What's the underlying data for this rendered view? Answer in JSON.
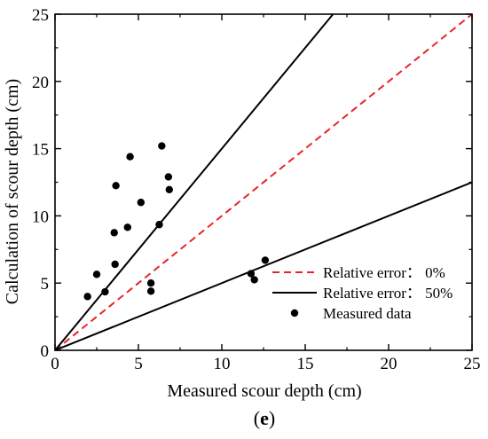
{
  "chart_data": {
    "type": "scatter",
    "xlabel": "Measured scour depth  (cm)",
    "ylabel": "Calculation of scour depth (cm)",
    "xlim": [
      0,
      25
    ],
    "ylim": [
      0,
      25
    ],
    "xticks": [
      "0",
      "5",
      "10",
      "15",
      "20",
      "25"
    ],
    "yticks": [
      "0",
      "5",
      "10",
      "15",
      "20",
      "25"
    ],
    "grid": false,
    "legend_position": "bottom-right",
    "panel_label": {
      "open": "(",
      "letter": "e",
      "close": ")"
    },
    "series": [
      {
        "name": "Relative error： 0%",
        "kind": "line",
        "style": "dashed",
        "color": "#e8242a",
        "x": [
          0,
          25
        ],
        "y": [
          0,
          25
        ]
      },
      {
        "name": "Relative error： 50%",
        "kind": "line",
        "style": "solid",
        "color": "#000000",
        "x": [
          0,
          16.667
        ],
        "y": [
          0,
          25
        ]
      },
      {
        "kind": "line",
        "style": "solid",
        "color": "#000000",
        "x": [
          0,
          25
        ],
        "y": [
          0,
          12.5
        ]
      },
      {
        "name": "Measured data",
        "kind": "scatter",
        "color": "#000000",
        "points": [
          [
            1.95,
            4.0
          ],
          [
            2.5,
            5.65
          ],
          [
            3.0,
            4.35
          ],
          [
            3.55,
            8.75
          ],
          [
            3.6,
            6.4
          ],
          [
            3.65,
            12.25
          ],
          [
            4.35,
            9.15
          ],
          [
            4.5,
            14.4
          ],
          [
            5.15,
            11.0
          ],
          [
            5.75,
            5.0
          ],
          [
            5.75,
            4.4
          ],
          [
            6.25,
            9.35
          ],
          [
            6.4,
            15.2
          ],
          [
            6.8,
            12.9
          ],
          [
            6.85,
            11.95
          ],
          [
            11.75,
            5.7
          ],
          [
            11.95,
            5.25
          ],
          [
            12.6,
            6.7
          ]
        ]
      }
    ]
  }
}
